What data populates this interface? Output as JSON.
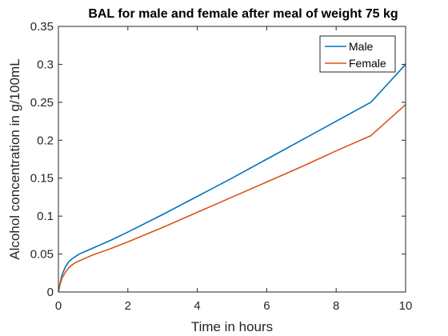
{
  "chart_data": {
    "type": "line",
    "title": "BAL for male and female after meal of weight 75 kg",
    "xlabel": "Time in hours",
    "ylabel": "Alcohol concentration in g/100mL",
    "xlim": [
      0,
      10
    ],
    "ylim": [
      0,
      0.35
    ],
    "xticks": [
      0,
      2,
      4,
      6,
      8,
      10
    ],
    "xtick_labels": [
      "0",
      "2",
      "4",
      "6",
      "8",
      "10"
    ],
    "yticks": [
      0,
      0.05,
      0.1,
      0.15,
      0.2,
      0.25,
      0.3,
      0.35
    ],
    "ytick_labels": [
      "0",
      "0.05",
      "0.1",
      "0.15",
      "0.2",
      "0.25",
      "0.3",
      "0.35"
    ],
    "grid": false,
    "legend_position": "top-right",
    "series": [
      {
        "name": "Male",
        "color": "#0072BD",
        "x": [
          0,
          0.05,
          0.1,
          0.2,
          0.3,
          0.4,
          0.5,
          0.6,
          0.8,
          1,
          1.5,
          2,
          3,
          4,
          5,
          6,
          7,
          8,
          9,
          10
        ],
        "y": [
          0,
          0.012,
          0.022,
          0.033,
          0.04,
          0.044,
          0.047,
          0.05,
          0.054,
          0.058,
          0.068,
          0.079,
          0.102,
          0.126,
          0.15,
          0.175,
          0.2,
          0.225,
          0.25,
          0.3
        ]
      },
      {
        "name": "Female",
        "color": "#D95319",
        "x": [
          0,
          0.05,
          0.1,
          0.2,
          0.3,
          0.4,
          0.5,
          0.6,
          0.8,
          1,
          1.5,
          2,
          3,
          4,
          5,
          6,
          7,
          8,
          9,
          10
        ],
        "y": [
          0,
          0.01,
          0.018,
          0.026,
          0.032,
          0.036,
          0.039,
          0.041,
          0.045,
          0.049,
          0.057,
          0.066,
          0.085,
          0.105,
          0.125,
          0.145,
          0.165,
          0.186,
          0.206,
          0.247
        ]
      }
    ]
  }
}
